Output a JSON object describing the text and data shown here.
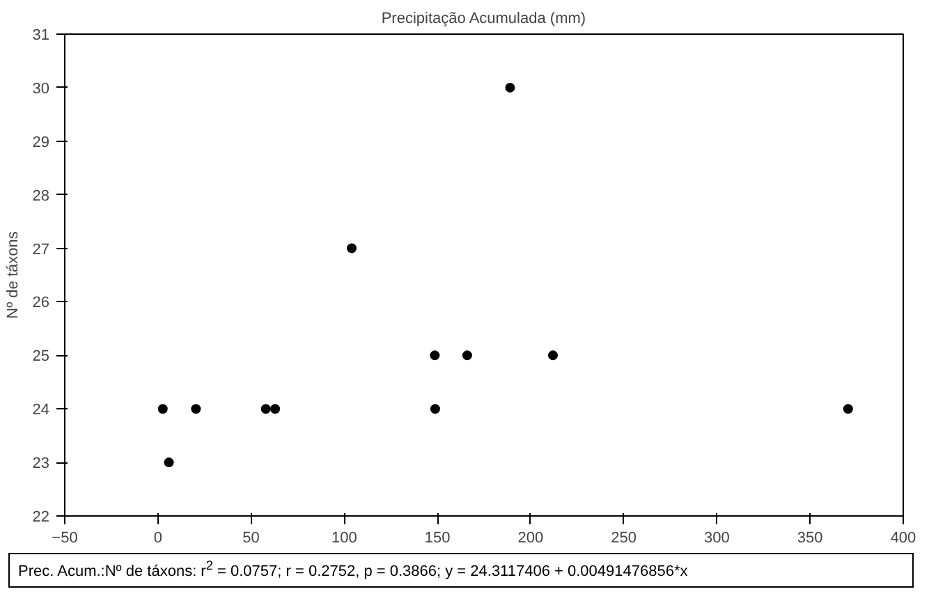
{
  "chart_data": {
    "type": "scatter",
    "title": "Precipitação Acumulada (mm)",
    "ylabel": "Nº de táxons",
    "x": [
      2.6,
      5.9,
      20.4,
      57.9,
      62.9,
      104,
      148.6,
      148.8,
      166,
      189,
      212,
      370.4
    ],
    "series": [
      {
        "color": "#000000",
        "values": [
          24,
          23,
          24,
          24,
          24,
          27,
          25,
          24,
          25,
          30,
          25,
          24
        ]
      }
    ],
    "xlim": [
      -50,
      400
    ],
    "xticks": [
      -50,
      0,
      50,
      100,
      150,
      200,
      250,
      300,
      350,
      400
    ],
    "ylim": [
      22,
      31
    ],
    "yticks": [
      22,
      23,
      24,
      25,
      26,
      27,
      28,
      29,
      30,
      31
    ],
    "grid": false,
    "marker": "circle",
    "annotations": [
      "Prec. Acum.:Nº de táxons:  r$^{2}$ = 0.0757;  r = 0.2752,  p = 0.3866;  y = 24.3117406 + 0.00491476856*x"
    ]
  }
}
